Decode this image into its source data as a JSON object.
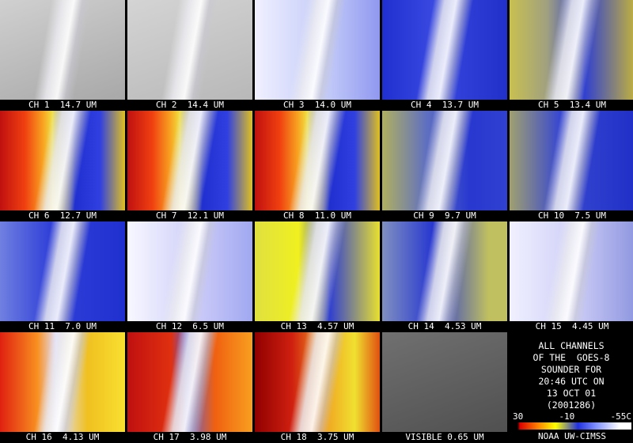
{
  "panels": [
    {
      "label": "CH 1  14.7 UM"
    },
    {
      "label": "CH 2  14.4 UM"
    },
    {
      "label": "CH 3  14.0 UM"
    },
    {
      "label": "CH 4  13.7 UM"
    },
    {
      "label": "CH 5  13.4 UM"
    },
    {
      "label": "CH 6  12.7 UM"
    },
    {
      "label": "CH 7  12.1 UM"
    },
    {
      "label": "CH 8  11.0 UM"
    },
    {
      "label": "CH 9  9.7 UM"
    },
    {
      "label": "CH 10  7.5 UM"
    },
    {
      "label": "CH 11  7.0 UM"
    },
    {
      "label": "CH 12  6.5 UM"
    },
    {
      "label": "CH 13  4.57 UM"
    },
    {
      "label": "CH 14  4.53 UM"
    },
    {
      "label": "CH 15  4.45 UM"
    },
    {
      "label": "CH 16  4.13 UM"
    },
    {
      "label": "CH 17  3.98 UM"
    },
    {
      "label": "CH 18  3.75 UM"
    },
    {
      "label": "VISIBLE 0.65 UM"
    }
  ],
  "info": {
    "lines": [
      "ALL CHANNELS",
      "OF THE  GOES-8",
      "SOUNDER FOR",
      "20:46 UTC ON",
      "13 OCT 01",
      "(2001286)"
    ],
    "scale": [
      "30",
      "-10",
      "-55C"
    ],
    "credit": "NOAA UW-CIMSS"
  }
}
